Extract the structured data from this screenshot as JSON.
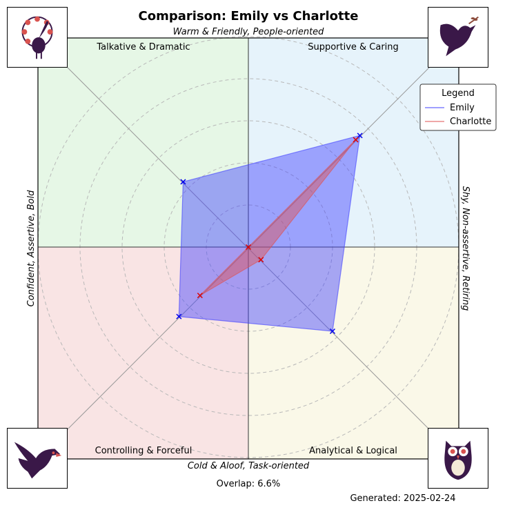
{
  "chart_data": {
    "type": "scatter",
    "title": "Comparison: Emily vs Charlotte",
    "axis_labels": {
      "top": "Warm & Friendly, People-oriented",
      "bottom": "Cold & Aloof, Task-oriented",
      "left": "Confident, Assertive, Bold",
      "right": "Shy, Non-assertive, Retiring"
    },
    "quadrants": {
      "top_left": {
        "label": "Talkative & Dramatic",
        "color": "#e6f7e6"
      },
      "top_right": {
        "label": "Supportive & Caring",
        "color": "#e6f3fb"
      },
      "bottom_left": {
        "label": "Controlling & Forceful",
        "color": "#f9e4e4"
      },
      "bottom_right": {
        "label": "Analytical & Logical",
        "color": "#faf8e8"
      }
    },
    "xlim": [
      -1,
      1
    ],
    "ylim": [
      -1,
      1
    ],
    "grid": "dashed concentric circles",
    "legend": {
      "title": "Legend",
      "position": "top-right"
    },
    "series": [
      {
        "name": "Emily",
        "color": "#4040ff",
        "points": [
          [
            0.53,
            0.53
          ],
          [
            0.4,
            -0.4
          ],
          [
            -0.33,
            -0.33
          ],
          [
            -0.31,
            0.31
          ]
        ]
      },
      {
        "name": "Charlotte",
        "color": "#e05050",
        "points": [
          [
            0.51,
            0.51
          ],
          [
            0.06,
            -0.06
          ],
          [
            -0.23,
            -0.23
          ],
          [
            0.0,
            0.0
          ]
        ]
      }
    ],
    "footer": {
      "overlap": "Overlap: 6.6%",
      "generated": "Generated: 2025-02-24"
    }
  },
  "icons": {
    "top_left": "peacock-icon",
    "top_right": "dove-icon",
    "bottom_left": "eagle-icon",
    "bottom_right": "owl-icon"
  }
}
